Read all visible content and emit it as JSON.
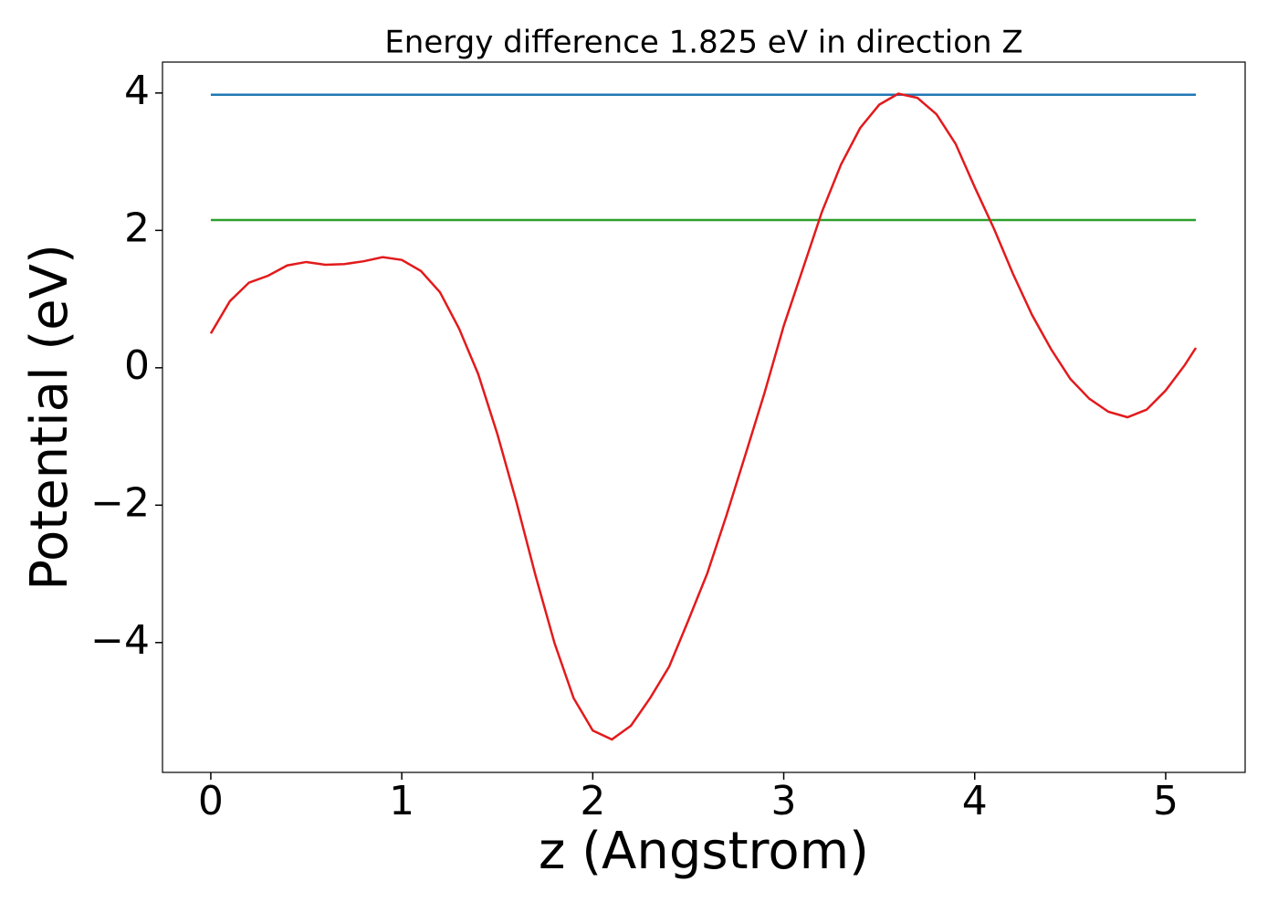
{
  "chart_data": {
    "type": "line",
    "title": "Energy difference 1.825 eV in direction Z",
    "xlabel": "z (Angstrom)",
    "ylabel": "Potential (eV)",
    "xlim": [
      -0.253,
      5.416
    ],
    "ylim": [
      -5.89,
      4.45
    ],
    "xticks": [
      0,
      1,
      2,
      3,
      4,
      5
    ],
    "yticks": [
      {
        "value": -4,
        "label": "−4"
      },
      {
        "value": -2,
        "label": "−2"
      },
      0,
      2,
      4
    ],
    "grid": false,
    "series": [
      {
        "color": "#1f77b4",
        "x": [
          0,
          5.158
        ],
        "values": [
          3.975,
          3.975
        ]
      },
      {
        "color": "#2ca02c",
        "x": [
          0,
          5.158
        ],
        "values": [
          2.15,
          2.15
        ]
      },
      {
        "color": "#e31a1c",
        "x": [
          0,
          0.1,
          0.2,
          0.3,
          0.4,
          0.5,
          0.6,
          0.7,
          0.8,
          0.9,
          1.0,
          1.1,
          1.2,
          1.3,
          1.4,
          1.5,
          1.6,
          1.7,
          1.8,
          1.9,
          2.0,
          2.1,
          2.2,
          2.3,
          2.4,
          2.5,
          2.6,
          2.7,
          2.8,
          2.9,
          3.0,
          3.1,
          3.2,
          3.3,
          3.4,
          3.5,
          3.6,
          3.7,
          3.8,
          3.9,
          4.0,
          4.1,
          4.2,
          4.3,
          4.4,
          4.5,
          4.6,
          4.7,
          4.8,
          4.9,
          5.0,
          5.1,
          5.158
        ],
        "values": [
          0.5,
          0.97,
          1.24,
          1.34,
          1.49,
          1.54,
          1.5,
          1.51,
          1.55,
          1.61,
          1.57,
          1.41,
          1.1,
          0.57,
          -0.09,
          -0.96,
          -1.95,
          -3.02,
          -4.01,
          -4.81,
          -5.28,
          -5.41,
          -5.21,
          -4.81,
          -4.35,
          -3.68,
          -2.99,
          -2.15,
          -1.26,
          -0.36,
          0.61,
          1.44,
          2.27,
          2.96,
          3.49,
          3.83,
          3.99,
          3.93,
          3.69,
          3.26,
          2.63,
          2.03,
          1.37,
          0.77,
          0.27,
          -0.16,
          -0.45,
          -0.64,
          -0.72,
          -0.61,
          -0.33,
          0.04,
          0.29
        ]
      }
    ]
  }
}
